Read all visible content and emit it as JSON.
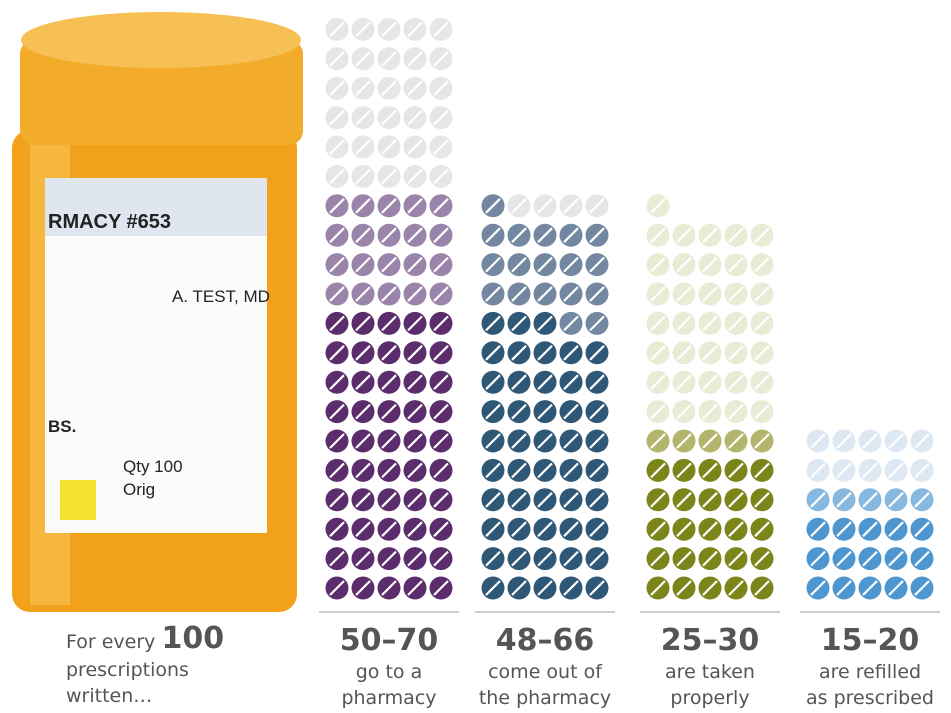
{
  "chart_data": {
    "type": "pictograph",
    "per_row": 5,
    "bottle": {
      "lines": [
        "RMACY #653",
        "A. TEST, MD",
        "BS.",
        "Qty 100",
        "Orig"
      ]
    },
    "intro": {
      "prefix": "For every",
      "number": "100",
      "lines": [
        "prescriptions",
        "written…"
      ]
    },
    "columns": [
      {
        "label": "50–70",
        "caption": [
          "go to a",
          "pharmacy"
        ],
        "segments": [
          {
            "count": 50,
            "color": "#5b2d6c"
          },
          {
            "count": 20,
            "color": "#9b84a9"
          },
          {
            "count": 30,
            "color": "#e5e6e8"
          }
        ]
      },
      {
        "label": "48–66",
        "caption": [
          "come out of",
          "the pharmacy"
        ],
        "segments": [
          {
            "count": 48,
            "color": "#2f5877"
          },
          {
            "count": 18,
            "color": "#7388a0"
          },
          {
            "count": 4,
            "color": "#e5e6e8"
          }
        ]
      },
      {
        "label": "25–30",
        "caption": [
          "are taken",
          "properly"
        ],
        "segments": [
          {
            "count": 25,
            "color": "#7b8519"
          },
          {
            "count": 5,
            "color": "#b4b56c"
          },
          {
            "count": 36,
            "color": "#e9ebd4"
          }
        ]
      },
      {
        "label": "15–20",
        "caption": [
          "are refilled",
          "as prescribed"
        ],
        "segments": [
          {
            "count": 15,
            "color": "#4e96cf"
          },
          {
            "count": 5,
            "color": "#86b8e0"
          },
          {
            "count": 10,
            "color": "#dde8f3"
          }
        ]
      }
    ]
  }
}
